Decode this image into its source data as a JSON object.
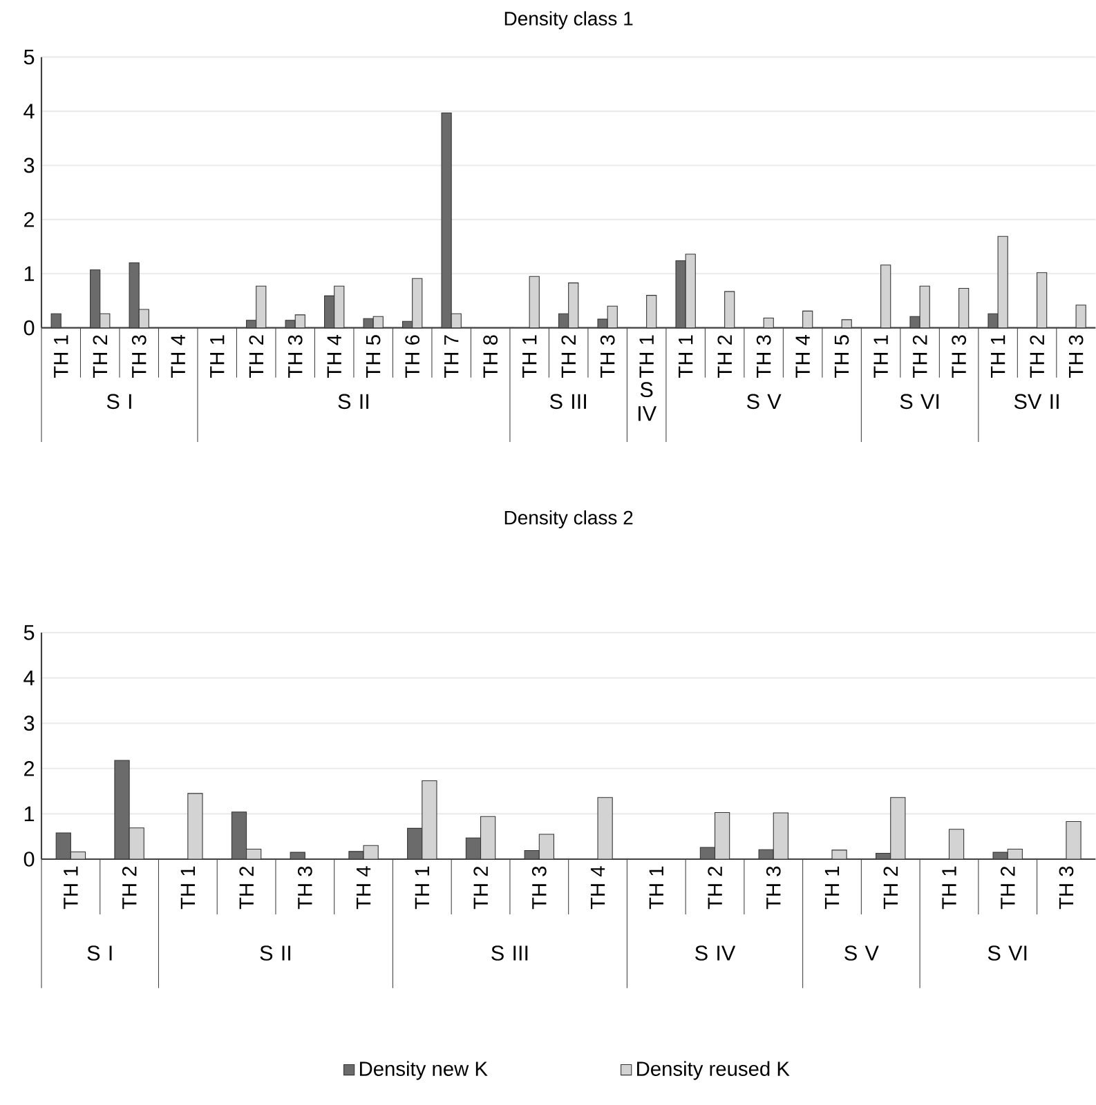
{
  "chart_data": [
    {
      "type": "bar",
      "title": "Density class 1",
      "categories": [
        "TH 1",
        "TH 2",
        "TH 3",
        "TH 4",
        "TH 1",
        "TH 2",
        "TH 3",
        "TH 4",
        "TH 5",
        "TH 6",
        "TH 7",
        "TH 8",
        "TH 1",
        "TH 2",
        "TH 3",
        "TH 1",
        "TH 1",
        "TH 2",
        "TH 3",
        "TH 4",
        "TH 5",
        "TH 1",
        "TH 2",
        "TH 3",
        "TH 1",
        "TH 2",
        "TH 3"
      ],
      "series": [
        {
          "color": "#6b6b6b",
          "values": [
            0.26,
            1.07,
            1.2,
            null,
            null,
            0.14,
            0.14,
            0.59,
            0.17,
            0.12,
            3.97,
            null,
            null,
            0.26,
            0.16,
            null,
            1.24,
            null,
            null,
            null,
            null,
            null,
            0.21,
            null,
            0.26,
            null,
            null
          ]
        },
        {
          "color": "#d3d3d3",
          "values": [
            null,
            0.26,
            0.34,
            null,
            null,
            0.77,
            0.24,
            0.77,
            0.21,
            0.91,
            0.26,
            null,
            0.95,
            0.83,
            0.4,
            0.6,
            1.36,
            0.67,
            0.18,
            0.31,
            0.15,
            1.16,
            0.77,
            0.73,
            1.69,
            1.02,
            0.42
          ]
        }
      ],
      "ylim": [
        0,
        5
      ],
      "yticks": [
        0,
        1,
        2,
        3,
        4,
        5
      ],
      "grid": "y",
      "annotations": [
        "S I",
        "S II",
        "S III",
        "S IV",
        "S V",
        "S VI",
        "SV II"
      ]
    },
    {
      "type": "bar",
      "title": "Density class 2",
      "categories": [
        "TH 1",
        "TH 2",
        "TH 1",
        "TH 2",
        "TH 3",
        "TH 4",
        "TH 1",
        "TH 2",
        "TH 3",
        "TH 4",
        "TH 1",
        "TH 2",
        "TH 3",
        "TH 1",
        "TH 2",
        "TH 1",
        "TH 2",
        "TH 3"
      ],
      "series": [
        {
          "name": "Density new K",
          "color": "#6b6b6b",
          "values": [
            0.58,
            2.18,
            null,
            1.04,
            0.15,
            0.17,
            0.68,
            0.47,
            0.19,
            null,
            null,
            0.26,
            0.21,
            null,
            0.13,
            null,
            0.15,
            null
          ]
        },
        {
          "name": "Density reused K",
          "color": "#d3d3d3",
          "values": [
            0.16,
            0.69,
            1.45,
            0.22,
            null,
            0.3,
            1.73,
            0.94,
            0.55,
            1.36,
            null,
            1.03,
            1.02,
            0.2,
            1.36,
            0.66,
            0.22,
            0.83
          ]
        }
      ],
      "ylim": [
        0,
        5
      ],
      "yticks": [
        0,
        1,
        2,
        3,
        4,
        5
      ],
      "grid": "y",
      "legend": "bottom",
      "annotations": [
        "S I",
        "S II",
        "S III",
        "S IV",
        "S V",
        "S VI"
      ]
    }
  ]
}
